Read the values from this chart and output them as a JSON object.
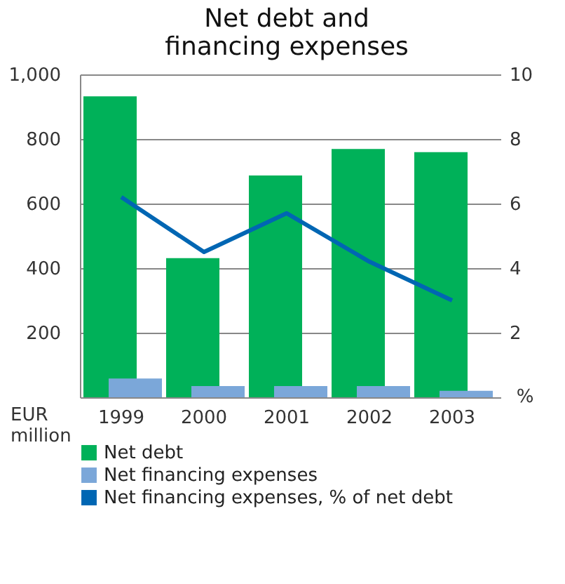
{
  "chart_data": {
    "type": "bar",
    "title": [
      "Net debt and",
      "financing expenses"
    ],
    "categories": [
      "1999",
      "2000",
      "2001",
      "2002",
      "2003"
    ],
    "series": [
      {
        "name": "Net debt",
        "color": "#00b159",
        "values": [
          932,
          431,
          687,
          769,
          759
        ]
      },
      {
        "name": "Net financing expenses",
        "color": "#7ba7d9",
        "values": [
          58,
          35,
          35,
          35,
          20
        ]
      },
      {
        "name": "Net financing expenses, % of net debt",
        "color": "#0066b3",
        "type": "line",
        "axis": "y2",
        "values": [
          6.2,
          4.5,
          5.7,
          4.2,
          3.0
        ]
      }
    ],
    "ylabel": "EUR million",
    "y2label": "%",
    "ylim": [
      0,
      1000
    ],
    "yticks": [
      {
        "value": 0,
        "label": null
      },
      200,
      400,
      600,
      800,
      {
        "value": 1000,
        "label": "1,000"
      }
    ],
    "y2lim": [
      0,
      10
    ],
    "y2ticks": [
      {
        "value": 0,
        "label": null
      },
      2,
      4,
      6,
      8,
      10
    ],
    "grid": "y",
    "legend": "bottom"
  }
}
